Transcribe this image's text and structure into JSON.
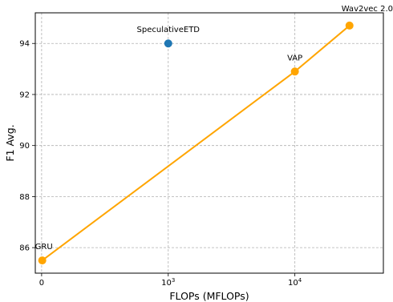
{
  "chart_data": {
    "type": "scatter",
    "xlabel": "FLOPs (MFLOPs)",
    "ylabel": "F1 Avg.",
    "xscale": "symlog",
    "xlim": [
      -50,
      50000
    ],
    "ylim": [
      85.0,
      95.2
    ],
    "grid": true,
    "x_ticks": [
      {
        "value": 0,
        "label": "0",
        "power": ""
      },
      {
        "value": 1000,
        "label": "10",
        "power": "3"
      },
      {
        "value": 10000,
        "label": "10",
        "power": "4"
      }
    ],
    "y_ticks": [
      86,
      88,
      90,
      92,
      94
    ],
    "series": [
      {
        "color": "#1f77b4",
        "line": false,
        "points": [
          {
            "x": 1000,
            "y": 94.0,
            "label": "SpeculativeETD"
          }
        ]
      },
      {
        "color": "#ffa500",
        "line": true,
        "points": [
          {
            "x": 5,
            "y": 85.5,
            "label": "GRU"
          },
          {
            "x": 10000,
            "y": 92.9,
            "label": "VAP"
          },
          {
            "x": 27000,
            "y": 94.7,
            "label": "Wav2vec 2.0"
          }
        ]
      }
    ]
  }
}
